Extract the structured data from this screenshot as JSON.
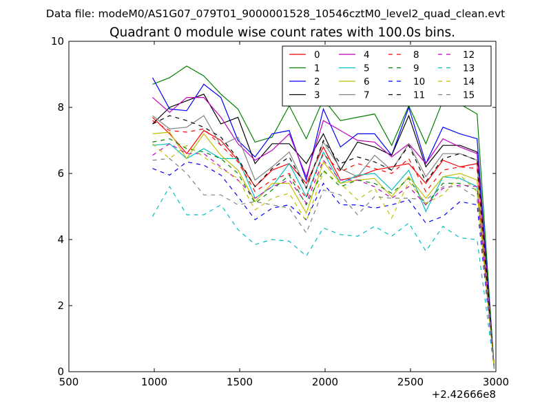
{
  "chart_data": {
    "type": "line",
    "suptitle": "Data file: modeM0/AS1G07_079T01_9000001528_10546cztM0_level2_quad_clean.evt",
    "title": "Quadrant 0 module wise count rates with 100.0s bins.",
    "xlabel": "",
    "ylabel": "",
    "offset_label": "+2.42666e8",
    "xlim": [
      500,
      3000
    ],
    "ylim": [
      0,
      10
    ],
    "xticks": [
      500,
      1000,
      1500,
      2000,
      2500,
      3000
    ],
    "yticks": [
      0,
      2,
      4,
      6,
      8,
      10
    ],
    "grid": false,
    "legend_position": "top-right",
    "x": [
      990,
      1090,
      1190,
      1290,
      1390,
      1490,
      1590,
      1690,
      1790,
      1890,
      1990,
      2090,
      2190,
      2290,
      2390,
      2490,
      2590,
      2690,
      2790,
      2890,
      2990
    ],
    "series": [
      {
        "name": "0",
        "color": "#ff0000",
        "dash": "solid",
        "values": [
          7.7,
          7.2,
          6.6,
          7.3,
          7.0,
          6.4,
          5.6,
          6.1,
          6.3,
          5.7,
          6.8,
          5.8,
          5.9,
          6.1,
          6.2,
          6.3,
          5.7,
          6.4,
          6.2,
          6.3,
          0.1
        ]
      },
      {
        "name": "1",
        "color": "#008000",
        "dash": "solid",
        "values": [
          8.7,
          8.9,
          9.25,
          8.95,
          8.4,
          7.95,
          6.95,
          7.1,
          8.05,
          7.05,
          8.25,
          7.6,
          7.7,
          7.8,
          6.85,
          8.05,
          6.9,
          8.2,
          8.1,
          7.8,
          0.1
        ]
      },
      {
        "name": "2",
        "color": "#0000ff",
        "dash": "solid",
        "values": [
          8.9,
          7.95,
          7.9,
          8.7,
          8.3,
          7.0,
          6.5,
          7.2,
          7.3,
          5.8,
          7.95,
          6.8,
          7.2,
          7.2,
          6.55,
          8.0,
          6.3,
          7.4,
          7.2,
          7.05,
          0.1
        ]
      },
      {
        "name": "3",
        "color": "#000000",
        "dash": "solid",
        "values": [
          7.5,
          8.0,
          8.2,
          8.4,
          7.5,
          7.7,
          6.3,
          6.9,
          6.9,
          6.3,
          7.2,
          6.1,
          6.95,
          6.8,
          6.55,
          7.75,
          6.2,
          6.85,
          6.85,
          6.65,
          0.1
        ]
      },
      {
        "name": "4",
        "color": "#bf00bf",
        "dash": "solid",
        "values": [
          8.3,
          7.85,
          8.3,
          8.3,
          7.7,
          6.9,
          6.4,
          6.7,
          7.2,
          5.9,
          7.6,
          7.3,
          7.0,
          6.95,
          6.5,
          6.9,
          6.3,
          7.05,
          6.8,
          6.6,
          0.1
        ]
      },
      {
        "name": "5",
        "color": "#00bfbf",
        "dash": "solid",
        "values": [
          6.85,
          6.9,
          6.45,
          6.75,
          6.45,
          6.45,
          5.25,
          5.6,
          6.3,
          5.3,
          6.65,
          5.7,
          5.95,
          6.0,
          5.5,
          6.1,
          4.85,
          5.9,
          5.85,
          5.6,
          0.1
        ]
      },
      {
        "name": "6",
        "color": "#bfbf00",
        "dash": "solid",
        "values": [
          7.2,
          7.25,
          6.45,
          7.2,
          6.55,
          6.1,
          5.15,
          5.7,
          5.7,
          4.8,
          6.35,
          5.7,
          5.8,
          5.85,
          5.3,
          5.9,
          5.25,
          5.9,
          6.0,
          5.8,
          0.1
        ]
      },
      {
        "name": "7",
        "color": "#808080",
        "dash": "solid",
        "values": [
          7.75,
          7.35,
          7.4,
          7.75,
          6.85,
          7.1,
          5.8,
          6.2,
          6.65,
          5.55,
          6.95,
          6.15,
          5.9,
          6.55,
          6.1,
          6.9,
          5.9,
          6.6,
          6.6,
          6.4,
          0.1
        ]
      },
      {
        "name": "8",
        "color": "#ff0000",
        "dash": "dashed",
        "values": [
          7.6,
          7.3,
          7.25,
          7.35,
          6.85,
          6.35,
          5.45,
          5.8,
          6.0,
          5.25,
          6.6,
          6.05,
          6.3,
          6.15,
          6.0,
          6.45,
          5.45,
          6.1,
          6.2,
          6.15,
          0.1
        ]
      },
      {
        "name": "9",
        "color": "#008000",
        "dash": "dashed",
        "values": [
          6.95,
          7.05,
          6.75,
          6.65,
          6.45,
          6.0,
          5.1,
          5.5,
          5.95,
          5.05,
          6.1,
          5.6,
          5.8,
          5.7,
          5.4,
          5.85,
          5.05,
          5.7,
          5.7,
          5.5,
          0.1
        ]
      },
      {
        "name": "10",
        "color": "#0000ff",
        "dash": "dashed",
        "values": [
          6.15,
          5.95,
          6.35,
          6.25,
          5.95,
          5.3,
          4.6,
          4.95,
          5.05,
          4.6,
          5.7,
          5.05,
          5.05,
          4.95,
          5.05,
          5.2,
          4.5,
          4.7,
          5.15,
          5.05,
          0.1
        ]
      },
      {
        "name": "11",
        "color": "#000000",
        "dash": "dashed",
        "values": [
          7.5,
          7.75,
          7.6,
          7.4,
          7.1,
          6.45,
          5.6,
          6.15,
          6.5,
          5.55,
          7.0,
          6.3,
          6.5,
          6.35,
          6.1,
          6.85,
          5.75,
          6.45,
          6.6,
          6.4,
          0.1
        ]
      },
      {
        "name": "12",
        "color": "#bf00bf",
        "dash": "dashed",
        "values": [
          6.55,
          6.9,
          6.6,
          6.6,
          6.2,
          5.8,
          5.25,
          5.6,
          5.8,
          5.1,
          6.4,
          5.8,
          5.8,
          5.6,
          5.25,
          5.6,
          5.05,
          5.55,
          5.65,
          5.6,
          0.1
        ]
      },
      {
        "name": "13",
        "color": "#00bfbf",
        "dash": "dashed",
        "values": [
          4.7,
          5.6,
          4.75,
          4.75,
          5.05,
          4.3,
          3.85,
          4.0,
          3.95,
          3.5,
          4.35,
          4.15,
          4.1,
          4.4,
          4.1,
          4.5,
          3.65,
          4.4,
          4.05,
          4.0,
          0.1
        ]
      },
      {
        "name": "14",
        "color": "#bfbf00",
        "dash": "dashed",
        "values": [
          6.9,
          6.45,
          6.85,
          6.5,
          6.15,
          5.85,
          4.9,
          5.25,
          5.4,
          4.55,
          6.05,
          5.7,
          5.2,
          5.55,
          4.65,
          5.75,
          5.1,
          5.35,
          5.95,
          5.45,
          0.1
        ]
      },
      {
        "name": "15",
        "color": "#808080",
        "dash": "dashed",
        "values": [
          6.4,
          6.45,
          6.0,
          5.35,
          5.35,
          5.05,
          5.15,
          5.05,
          4.95,
          4.2,
          5.5,
          5.35,
          4.75,
          5.3,
          5.25,
          5.25,
          5.2,
          5.6,
          5.6,
          5.25,
          0.1
        ]
      }
    ]
  }
}
